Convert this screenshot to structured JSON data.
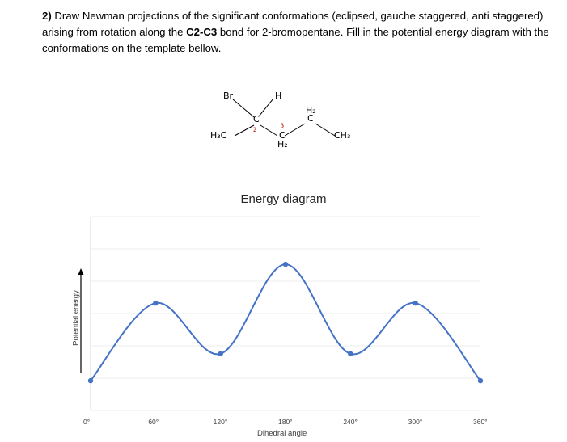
{
  "question": {
    "number": "2)",
    "text_1": "Draw Newman projections of the significant conformations (eclipsed, gauche staggered, anti staggered) arising from rotation along the ",
    "bond": "C2-C3",
    "text_2": " bond for 2-bromopentane. Fill in the potential energy diagram with the conformations on the template bellow."
  },
  "molecule": {
    "br": "Br",
    "h": "H",
    "h3c": "H₃C",
    "c2": "C",
    "c3": "C",
    "h2_bottom": "H₂",
    "h2_top": "H₂",
    "c4": "C",
    "ch3": "CH₃",
    "num_2": "2",
    "num_3": "3"
  },
  "chart_data": {
    "type": "line",
    "title": "Energy diagram",
    "xlabel": "Dihedral angle",
    "ylabel": "Potential energy",
    "tick_labels": [
      "0°",
      "60°",
      "120°",
      "180°",
      "240°",
      "300°",
      "360°"
    ],
    "x": [
      0,
      60,
      120,
      180,
      240,
      300,
      360
    ],
    "values": [
      0.2,
      0.72,
      0.38,
      0.98,
      0.38,
      0.72,
      0.2
    ],
    "ylim": [
      0,
      1.3
    ],
    "xlim": [
      0,
      360
    ],
    "grid": true,
    "line_color": "#4472c4",
    "smooth": true
  }
}
